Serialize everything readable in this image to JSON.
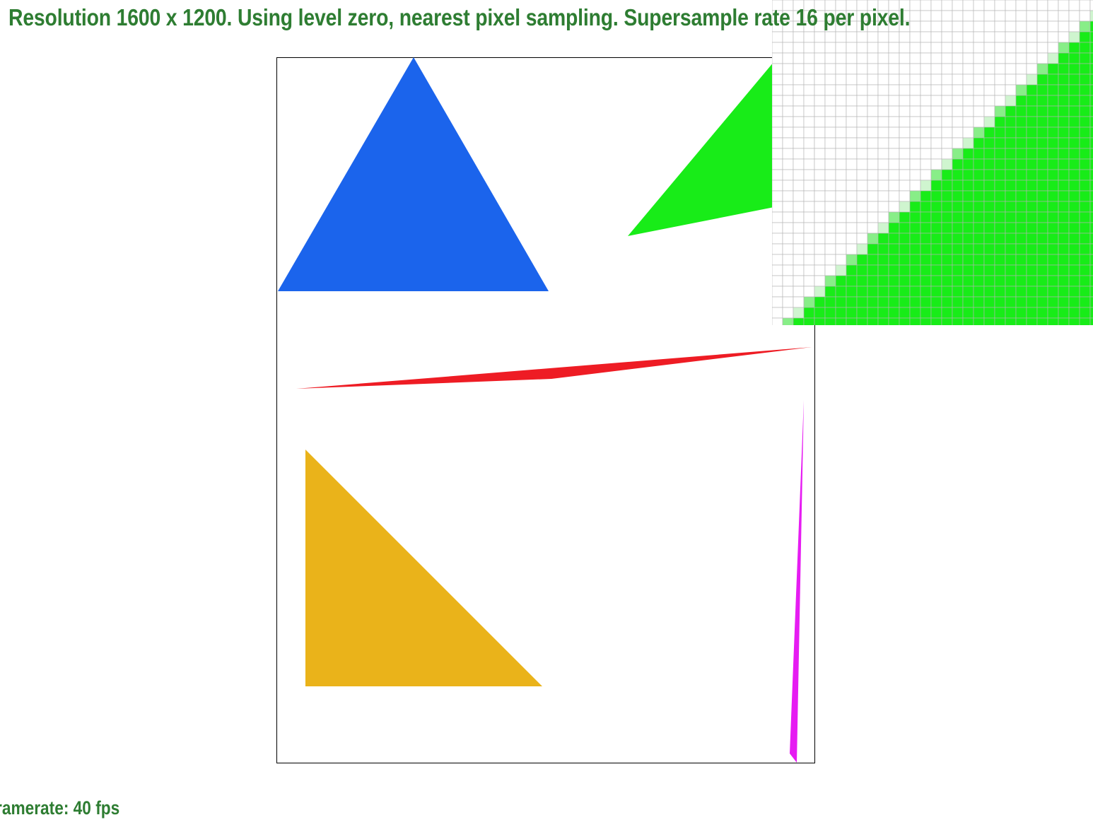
{
  "status": {
    "info_text": "Resolution 1600 x 1200. Using level zero, nearest pixel sampling. Supersample rate 16 per pixel.",
    "framerate_text": "ramerate: 40 fps"
  },
  "render": {
    "resolution": "1600 x 1200",
    "texture_level": "level zero",
    "sampling": "nearest pixel sampling",
    "supersample_rate": 16
  },
  "colors": {
    "text": "#2e7d32",
    "blue_triangle": "#1b64ec",
    "green_triangle": "#18ec18",
    "red_triangle": "#ee1c24",
    "yellow_triangle": "#eab31a",
    "magenta_triangle": "#e61cf2",
    "zoom_grid_line": "#b4b4b4",
    "zoom_edge_light": "#88ee88",
    "zoom_edge_faint": "#cff5cf"
  },
  "shapes": [
    {
      "name": "blue-triangle",
      "color": "blue_triangle"
    },
    {
      "name": "green-triangle",
      "color": "green_triangle"
    },
    {
      "name": "red-sliver-triangle",
      "color": "red_triangle"
    },
    {
      "name": "yellow-right-triangle",
      "color": "yellow_triangle"
    },
    {
      "name": "magenta-sliver-triangle",
      "color": "magenta_triangle"
    }
  ]
}
